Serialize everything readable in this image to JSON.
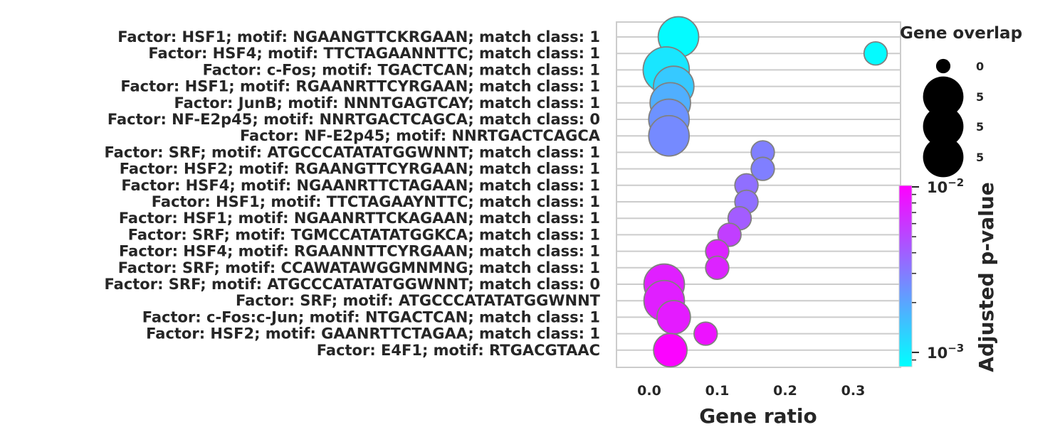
{
  "chart_data": {
    "type": "scatter",
    "xlabel": "Gene ratio",
    "xlim": [
      -0.05,
      0.37
    ],
    "xticks": [
      0.0,
      0.1,
      0.2,
      0.3
    ],
    "xtick_labels": [
      "0.0",
      "0.1",
      "0.2",
      "0.3"
    ],
    "size_legend": {
      "title": "Gene overlap",
      "labels": [
        "0",
        "5",
        "5",
        "5"
      ],
      "sizes": [
        1,
        5,
        5,
        5
      ]
    },
    "colorbar": {
      "label": "Adjusted p-value",
      "scale": "log",
      "range": [
        0.00082,
        0.0102
      ],
      "ticks": [
        {
          "value": 0.01,
          "label_base": "10",
          "label_exp": "−2"
        },
        {
          "value": 0.001,
          "label_base": "10",
          "label_exp": "−3"
        }
      ],
      "minor_ticks": [
        0.009,
        0.008,
        0.007,
        0.006,
        0.005,
        0.004,
        0.003,
        0.002,
        0.0009
      ]
    },
    "points": [
      {
        "label": "Factor: HSF1; motif: NGAANGTTCKRGAAN; match class: 1",
        "ratio": 0.043,
        "overlap": 5,
        "pvalue": 0.00085
      },
      {
        "label": "Factor: HSF4; motif: TTCTAGAANNTTC; match class: 1",
        "ratio": 0.333,
        "overlap": 1,
        "pvalue": 0.00085
      },
      {
        "label": "Factor: c-Fos; motif: TGACTCAN; match class: 1",
        "ratio": 0.025,
        "overlap": 7,
        "pvalue": 0.00105
      },
      {
        "label": "Factor: HSF1; motif: RGAANRTTCYRGAAN; match class: 1",
        "ratio": 0.036,
        "overlap": 5,
        "pvalue": 0.0014
      },
      {
        "label": "Factor: JunB; motif: NNNTGAGTCAY; match class: 1",
        "ratio": 0.031,
        "overlap": 5,
        "pvalue": 0.0018
      },
      {
        "label": "Factor: NF-E2p45; motif: NNRTGACTCAGCA; match class: 0",
        "ratio": 0.029,
        "overlap": 5,
        "pvalue": 0.0024
      },
      {
        "label": "Factor: NF-E2p45; motif: NNRTGACTCAGCA",
        "ratio": 0.029,
        "overlap": 5,
        "pvalue": 0.0026
      },
      {
        "label": "Factor: SRF; motif: ATGCCCATATATGGWNNT; match class: 1",
        "ratio": 0.167,
        "overlap": 1,
        "pvalue": 0.0029
      },
      {
        "label": "Factor: HSF2; motif: RGAANGTTCYRGAAN; match class: 1",
        "ratio": 0.167,
        "overlap": 1,
        "pvalue": 0.0029
      },
      {
        "label": "Factor: HSF4; motif: NGAANRTTCTAGAAN; match class: 1",
        "ratio": 0.143,
        "overlap": 1,
        "pvalue": 0.0034
      },
      {
        "label": "Factor: HSF1; motif: TTCTAGAAYNTTC; match class: 1",
        "ratio": 0.143,
        "overlap": 1,
        "pvalue": 0.0034
      },
      {
        "label": "Factor: HSF1; motif: NGAANRTTCKAGAAN; match class: 1",
        "ratio": 0.133,
        "overlap": 1,
        "pvalue": 0.0041
      },
      {
        "label": "Factor: SRF; motif: TGMCCATATATGGKCA; match class: 1",
        "ratio": 0.118,
        "overlap": 1,
        "pvalue": 0.0055
      },
      {
        "label": "Factor: HSF4; motif: RGAANNTTCYRGAAN; match class: 1",
        "ratio": 0.1,
        "overlap": 1,
        "pvalue": 0.0072
      },
      {
        "label": "Factor: SRF; motif: CCAWATAWGGMNMNG; match class: 1",
        "ratio": 0.1,
        "overlap": 1,
        "pvalue": 0.0072
      },
      {
        "label": "Factor: SRF; motif: ATGCCCATATATGGWNNT; match class: 0",
        "ratio": 0.022,
        "overlap": 5,
        "pvalue": 0.0075
      },
      {
        "label": "Factor: SRF; motif: ATGCCCATATATGGWNNT",
        "ratio": 0.022,
        "overlap": 5,
        "pvalue": 0.0075
      },
      {
        "label": "Factor: c-Fos:c-Jun; motif: NTGACTCAN; match class: 1",
        "ratio": 0.036,
        "overlap": 3,
        "pvalue": 0.0078
      },
      {
        "label": "Factor: HSF2; motif: GAANRTTCTAGAA; match class: 1",
        "ratio": 0.083,
        "overlap": 1,
        "pvalue": 0.0085
      },
      {
        "label": "Factor: E4F1; motif: RTGACGTAAC",
        "ratio": 0.031,
        "overlap": 3,
        "pvalue": 0.0098
      }
    ]
  }
}
